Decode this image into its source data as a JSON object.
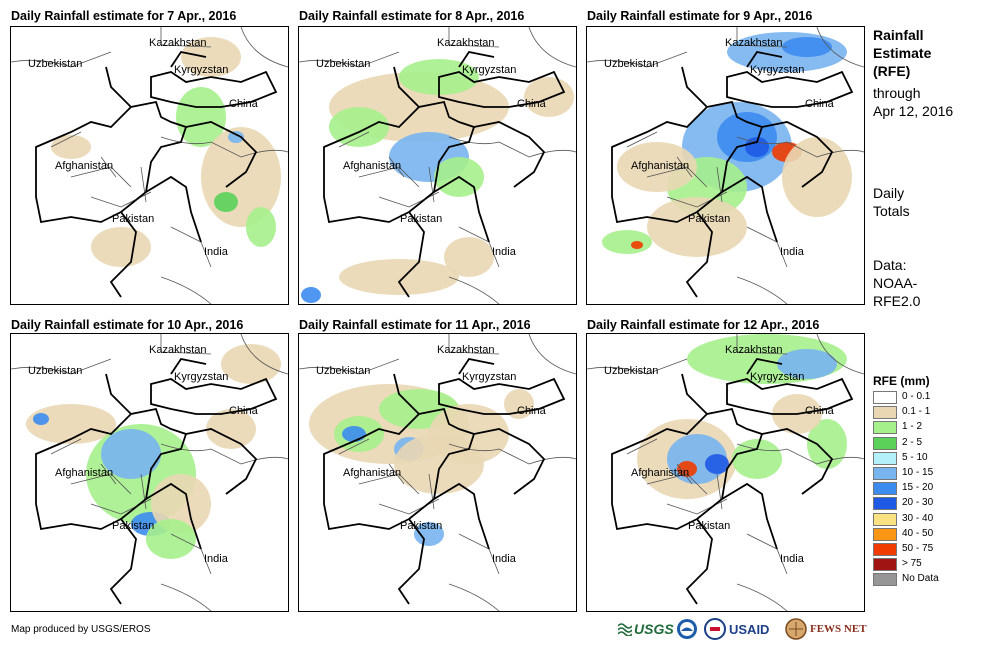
{
  "panels": [
    {
      "title": "Daily Rainfall estimate for 7 Apr., 2016"
    },
    {
      "title": "Daily Rainfall estimate for 8 Apr., 2016"
    },
    {
      "title": "Daily Rainfall estimate for 9 Apr., 2016"
    },
    {
      "title": "Daily Rainfall estimate for 10 Apr., 2016"
    },
    {
      "title": "Daily Rainfall estimate for 11 Apr., 2016"
    },
    {
      "title": "Daily Rainfall estimate for 12 Apr., 2016"
    }
  ],
  "map_labels": {
    "kazakhstan": "Kazakhstan",
    "uzbekistan": "Uzbekistan",
    "kyrgyzstan": "Kyrgyzstan",
    "china": "China",
    "afghanistan": "Afghanistan",
    "pakistan": "Pakistan",
    "india": "India"
  },
  "sidebar": {
    "title_lines": [
      "Rainfall",
      "Estimate",
      "(RFE)"
    ],
    "through_lines": [
      "through",
      "Apr 12, 2016"
    ],
    "daily_lines": [
      "Daily",
      "Totals"
    ],
    "data_lines": [
      "Data:",
      "NOAA-",
      "RFE2.0"
    ]
  },
  "legend": {
    "title": "RFE (mm)",
    "items": [
      {
        "label": "0 - 0.1",
        "color": "#ffffff"
      },
      {
        "label": "0.1 - 1",
        "color": "#e9d7b4"
      },
      {
        "label": "1 - 2",
        "color": "#a6f08c"
      },
      {
        "label": "2 - 5",
        "color": "#5ad25a"
      },
      {
        "label": "5 - 10",
        "color": "#b4f0fa"
      },
      {
        "label": "10 - 15",
        "color": "#78b4f0"
      },
      {
        "label": "15 - 20",
        "color": "#3c8cf0"
      },
      {
        "label": "20 - 30",
        "color": "#1e5ae6"
      },
      {
        "label": "30 - 40",
        "color": "#fae182"
      },
      {
        "label": "40 - 50",
        "color": "#fa9614"
      },
      {
        "label": "50 - 75",
        "color": "#f03c00"
      },
      {
        "label": "> 75",
        "color": "#a01414"
      },
      {
        "label": "No Data",
        "color": "#969696"
      }
    ]
  },
  "credit": "Map produced by USGS/EROS",
  "logos": {
    "usgs": "USGS",
    "usaid": "USAID",
    "fewsnet": "FEWS NET"
  }
}
